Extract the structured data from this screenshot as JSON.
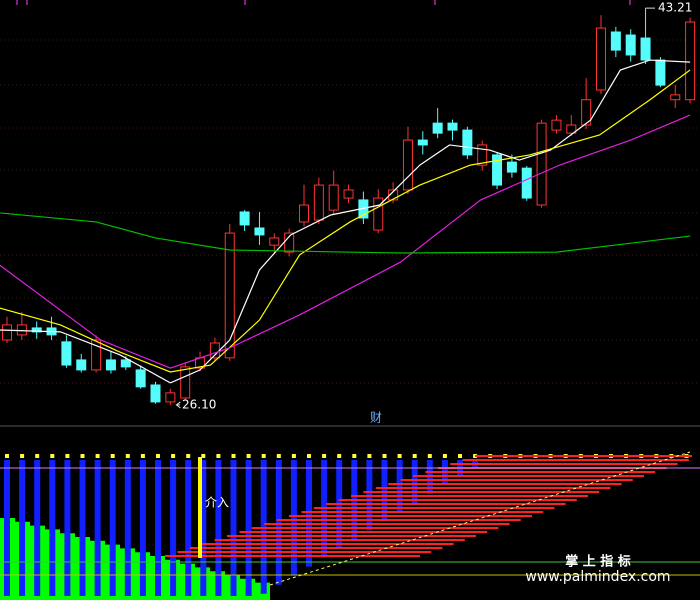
{
  "chart_data": {
    "type": "candlestick",
    "ylim": [
      25.45,
      43.56
    ],
    "candles": {
      "open": [
        28.9,
        29.12,
        29.42,
        29.42,
        28.82,
        28.04,
        27.61,
        28.04,
        28.04,
        27.61,
        26.96,
        26.23,
        26.4,
        27.69,
        28.13,
        28.13,
        34.42,
        33.73,
        32.99,
        32.69,
        33.99,
        34.07,
        34.5,
        35.02,
        34.94,
        33.64,
        34.94,
        35.37,
        37.52,
        38.25,
        38.25,
        37.95,
        36.44,
        36.88,
        36.57,
        36.31,
        34.72,
        37.95,
        37.82,
        38.17,
        39.68,
        42.18,
        42.05,
        41.92,
        40.97,
        39.26,
        39.26
      ],
      "high": [
        29.9,
        30.1,
        29.7,
        29.9,
        29.1,
        28.3,
        29.1,
        28.4,
        28.2,
        27.8,
        27.1,
        26.8,
        27.9,
        28.4,
        29.0,
        33.9,
        34.5,
        34.42,
        33.5,
        33.7,
        35.6,
        35.9,
        36.2,
        35.6,
        35.3,
        35.4,
        35.7,
        38.1,
        37.9,
        38.9,
        38.4,
        38.1,
        37.5,
        37.0,
        36.9,
        36.4,
        38.4,
        38.6,
        38.6,
        40.2,
        42.9,
        42.4,
        42.3,
        43.21,
        41.1,
        39.9,
        42.8
      ],
      "low": [
        28.77,
        28.9,
        28.95,
        28.9,
        27.7,
        27.5,
        27.5,
        27.45,
        27.6,
        26.8,
        26.15,
        26.1,
        26.3,
        27.55,
        28.0,
        28.0,
        33.6,
        33.0,
        32.6,
        32.5,
        33.8,
        33.9,
        34.3,
        34.8,
        33.9,
        33.5,
        34.8,
        35.2,
        36.9,
        37.6,
        37.5,
        36.7,
        36.2,
        35.4,
        35.9,
        34.9,
        34.6,
        37.8,
        37.7,
        38.0,
        39.5,
        41.1,
        40.9,
        40.8,
        39.8,
        38.9,
        39.1
      ],
      "close": [
        29.55,
        29.55,
        29.25,
        29.12,
        27.82,
        27.61,
        28.9,
        27.61,
        27.74,
        26.88,
        26.23,
        26.62,
        27.74,
        28.13,
        28.77,
        33.51,
        33.86,
        33.43,
        33.3,
        33.51,
        34.72,
        35.58,
        35.58,
        35.37,
        34.16,
        35.02,
        35.37,
        37.52,
        37.31,
        37.82,
        37.95,
        36.88,
        37.31,
        35.58,
        36.14,
        35.02,
        38.25,
        38.38,
        38.17,
        39.26,
        42.35,
        41.4,
        41.19,
        40.97,
        39.89,
        39.47,
        42.61
      ],
      "up_color": "#ff3232",
      "down_color": "#54fcfc"
    },
    "series": [
      {
        "color": "#ffffff",
        "x": [
          -0.5,
          3.6,
          7.6,
          11,
          13,
          15,
          17,
          19.1,
          21.8,
          25.1,
          27.8,
          29.8,
          32.5,
          34.5,
          36.6,
          39.3,
          41.3,
          43.3,
          46
        ],
        "values": [
          29.33,
          29.25,
          28.26,
          27.05,
          27.61,
          28.9,
          31.92,
          33.43,
          34.29,
          34.72,
          36.44,
          37.31,
          37.09,
          36.66,
          37.09,
          38.38,
          40.54,
          40.97,
          40.88
        ]
      },
      {
        "color": "#ffff00",
        "x": [
          -0.5,
          3.6,
          7.6,
          11,
          13.7,
          17,
          19.7,
          23.1,
          27.8,
          31.2,
          35.2,
          39.9,
          43.3,
          46
        ],
        "values": [
          30.28,
          29.55,
          28.38,
          27.52,
          27.82,
          29.76,
          32.57,
          33.99,
          35.58,
          36.44,
          36.88,
          37.74,
          39.26,
          40.54
        ]
      },
      {
        "color": "#e020e0",
        "x": [
          -0.5,
          6.3,
          11,
          15,
          19.7,
          26.5,
          31.9,
          37.2,
          42,
          46
        ],
        "values": [
          32.13,
          28.9,
          27.69,
          28.56,
          29.98,
          32.26,
          34.94,
          36.44,
          37.52,
          38.6
        ]
      },
      {
        "color": "#00c000",
        "x": [
          -0.5,
          6,
          10,
          15,
          26.5,
          37,
          46
        ],
        "values": [
          34.38,
          33.99,
          33.3,
          32.78,
          32.65,
          32.69,
          33.38
        ]
      }
    ],
    "high_marker": 43.21,
    "low_marker": {
      "value": 26.1,
      "label": "26.10"
    },
    "panel_label": "财",
    "signal_label": "介入",
    "watermark_title": "掌 上 指 标",
    "watermark_url": "www.palmindex.com"
  }
}
